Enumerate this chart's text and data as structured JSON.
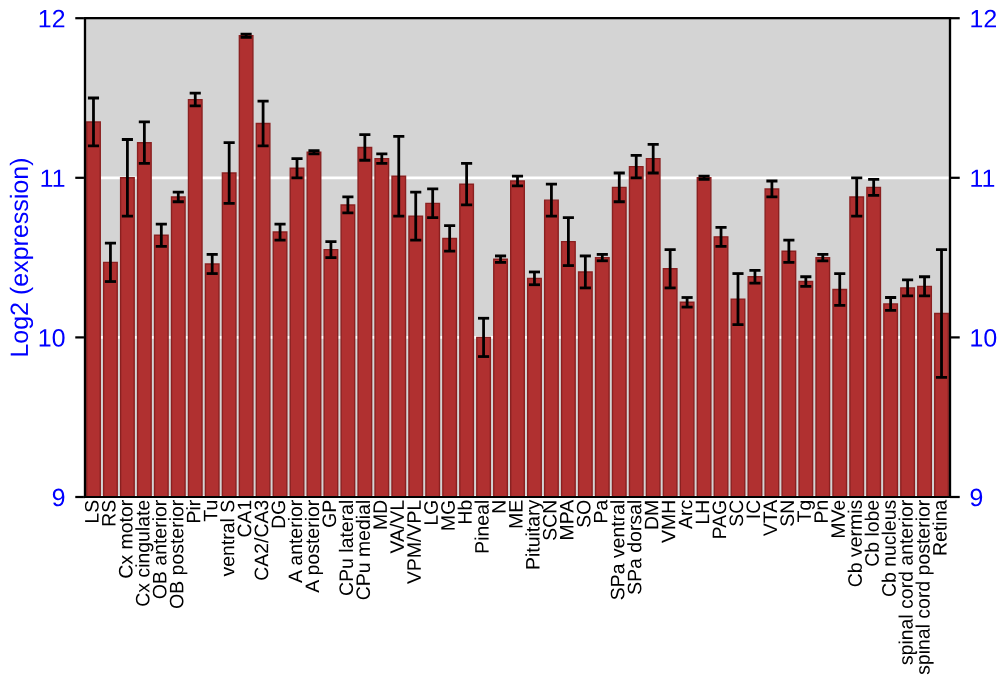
{
  "chart_data": {
    "type": "bar",
    "ylabel": "Log2 (expression)",
    "categories": [
      "LS",
      "RS",
      "Cx motor",
      "Cx cingulate",
      "OB anterior",
      "OB posterior",
      "Pir",
      "Tu",
      "ventral S",
      "CA1",
      "CA2/CA3",
      "DG",
      "A anterior",
      "A posterior",
      "GP",
      "CPu lateral",
      "CPu medial",
      "MD",
      "VA/VL",
      "VPM/VPL",
      "LG",
      "MG",
      "Hb",
      "Pineal",
      "N",
      "ME",
      "Pituitary",
      "SCN",
      "MPA",
      "SO",
      "Pa",
      "SPa ventral",
      "SPa dorsal",
      "DM",
      "VMH",
      "Arc",
      "LH",
      "PAG",
      "SC",
      "IC",
      "VTA",
      "SN",
      "Tg",
      "Pn",
      "MVe",
      "Cb vermis",
      "Cb lobe",
      "Cb nucleus",
      "spinal cord anterior",
      "spinal cord posterior",
      "Retina"
    ],
    "values": [
      11.35,
      10.47,
      11.0,
      11.22,
      10.64,
      10.88,
      11.49,
      10.46,
      11.03,
      11.89,
      11.34,
      10.66,
      11.06,
      11.16,
      10.55,
      10.83,
      11.19,
      11.12,
      11.01,
      10.76,
      10.84,
      10.62,
      10.96,
      10.0,
      10.49,
      10.98,
      10.37,
      10.86,
      10.6,
      10.41,
      10.5,
      10.94,
      11.07,
      11.12,
      10.43,
      10.22,
      11.0,
      10.63,
      10.24,
      10.38,
      10.93,
      10.54,
      10.35,
      10.5,
      10.3,
      10.88,
      10.94,
      10.21,
      10.31,
      10.32,
      10.15
    ],
    "errors": [
      0.15,
      0.12,
      0.24,
      0.13,
      0.07,
      0.03,
      0.04,
      0.06,
      0.19,
      0.01,
      0.14,
      0.05,
      0.06,
      0.01,
      0.05,
      0.05,
      0.08,
      0.03,
      0.25,
      0.15,
      0.09,
      0.08,
      0.13,
      0.12,
      0.02,
      0.03,
      0.04,
      0.1,
      0.15,
      0.1,
      0.02,
      0.09,
      0.07,
      0.09,
      0.12,
      0.03,
      0.01,
      0.06,
      0.16,
      0.04,
      0.05,
      0.07,
      0.03,
      0.02,
      0.1,
      0.12,
      0.05,
      0.04,
      0.05,
      0.06,
      0.4
    ],
    "color": "#b03030",
    "ylim": [
      9,
      12
    ],
    "yticks": [
      9,
      10,
      11,
      12
    ],
    "y2lim": [
      9,
      12
    ],
    "y2ticks": [
      9,
      10,
      11,
      12
    ],
    "grid": "y"
  }
}
